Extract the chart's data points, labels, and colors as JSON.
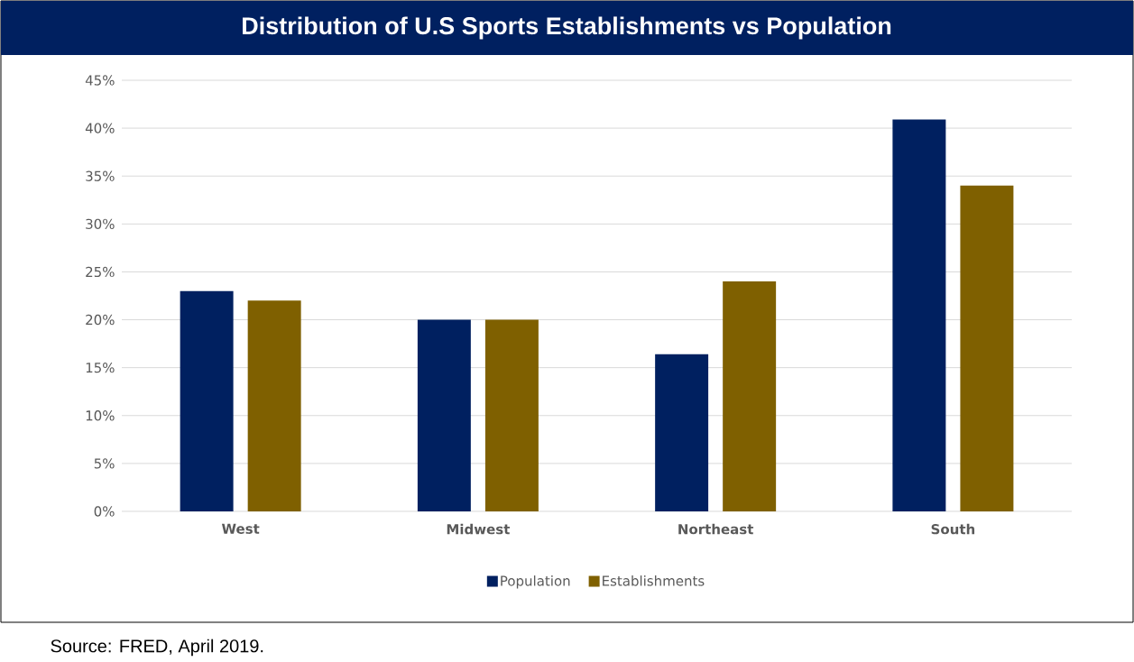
{
  "chart_data": {
    "type": "bar",
    "title": "Distribution of U.S Sports Establishments vs Population",
    "categories": [
      "West",
      "Midwest",
      "Northeast",
      "South"
    ],
    "series": [
      {
        "name": "Population",
        "color": "#002060",
        "values": [
          23,
          20,
          16.4,
          40.9
        ]
      },
      {
        "name": "Establishments",
        "color": "#7f6000",
        "values": [
          22,
          20,
          24,
          34
        ]
      }
    ],
    "ylim": [
      0,
      45
    ],
    "yticks": [
      {
        "value": 0,
        "label": "0%"
      },
      {
        "value": 5,
        "label": "5%"
      },
      {
        "value": 10,
        "label": "10%"
      },
      {
        "value": 15,
        "label": "15%"
      },
      {
        "value": 20,
        "label": "20%"
      },
      {
        "value": 25,
        "label": "25%"
      },
      {
        "value": 30,
        "label": "30%"
      },
      {
        "value": 35,
        "label": "35%"
      },
      {
        "value": 40,
        "label": "40%"
      },
      {
        "value": 45,
        "label": "45%"
      }
    ],
    "grid": "y",
    "legend": "bottom",
    "annotations": [
      "Source: FRED, April 2019."
    ]
  }
}
